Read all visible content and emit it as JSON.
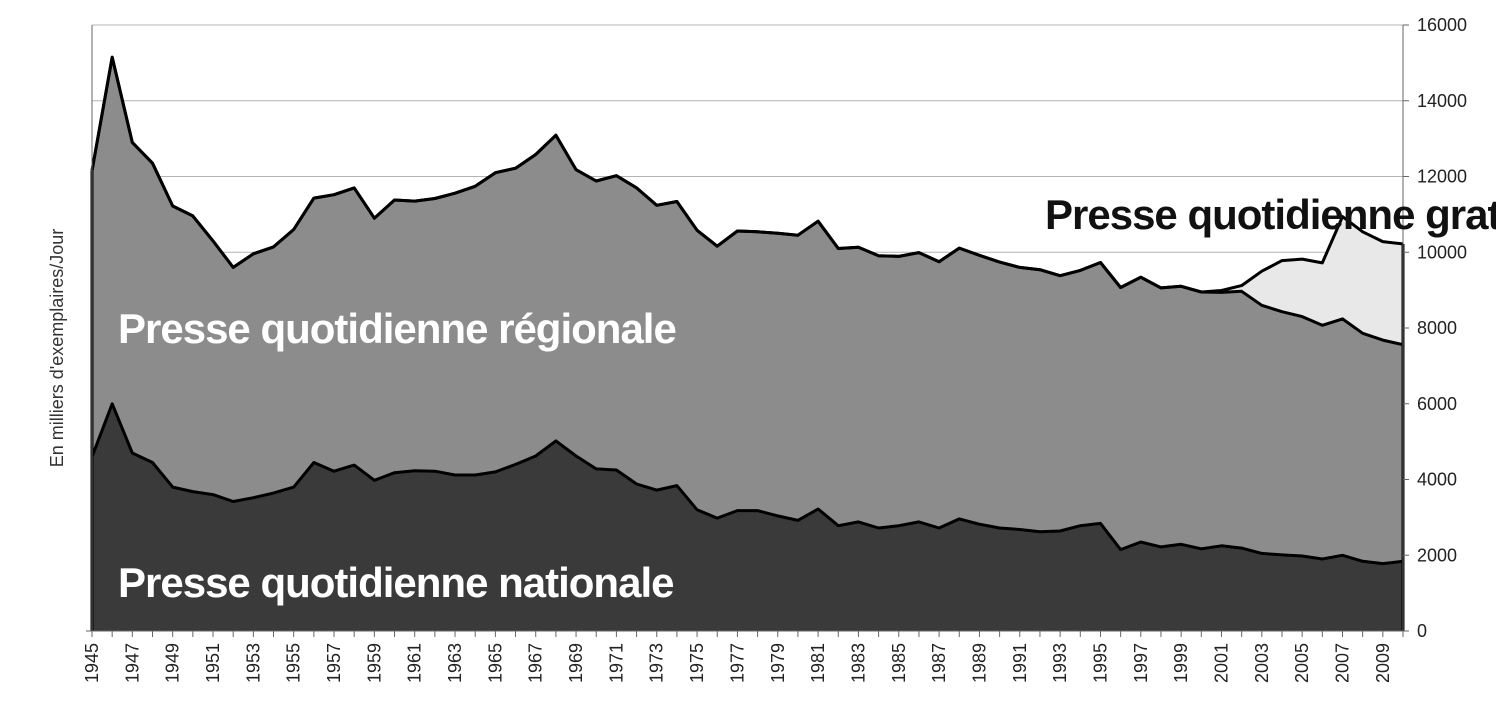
{
  "chart_data": {
    "type": "area",
    "stacked": true,
    "ylabel": "En milliers d'exemplaires/Jour",
    "ylim": [
      0,
      16000
    ],
    "yticks": [
      0,
      2000,
      4000,
      6000,
      8000,
      10000,
      12000,
      14000,
      16000
    ],
    "y_axis_side": "right",
    "grid": true,
    "x": [
      1945,
      1946,
      1947,
      1948,
      1949,
      1950,
      1951,
      1952,
      1953,
      1954,
      1955,
      1956,
      1957,
      1958,
      1959,
      1960,
      1961,
      1962,
      1963,
      1964,
      1965,
      1966,
      1967,
      1968,
      1969,
      1970,
      1971,
      1972,
      1973,
      1974,
      1975,
      1976,
      1977,
      1978,
      1979,
      1980,
      1981,
      1982,
      1983,
      1984,
      1985,
      1986,
      1987,
      1988,
      1989,
      1990,
      1991,
      1992,
      1993,
      1994,
      1995,
      1996,
      1997,
      1998,
      1999,
      2000,
      2001,
      2002,
      2003,
      2004,
      2005,
      2006,
      2007,
      2008,
      2009,
      2010
    ],
    "xtick_labels": [
      "1945",
      "1947",
      "1949",
      "1951",
      "1953",
      "1955",
      "1957",
      "1959",
      "1961",
      "1963",
      "1965",
      "1967",
      "1969",
      "1971",
      "1973",
      "1975",
      "1977",
      "1979",
      "1981",
      "1983",
      "1985",
      "1987",
      "1989",
      "1991",
      "1993",
      "1995",
      "1997",
      "1999",
      "2001",
      "2003",
      "2005",
      "2007",
      "2009"
    ],
    "series": [
      {
        "name": "Presse quotidienne nationale",
        "color": "#3a3a3a",
        "values": [
          4600,
          6000,
          4700,
          4450,
          3800,
          3680,
          3600,
          3420,
          3520,
          3640,
          3800,
          4450,
          4220,
          4380,
          3980,
          4180,
          4230,
          4220,
          4120,
          4120,
          4200,
          4400,
          4620,
          5020,
          4620,
          4280,
          4250,
          3880,
          3720,
          3840,
          3200,
          2980,
          3180,
          3180,
          3040,
          2920,
          3220,
          2780,
          2880,
          2720,
          2780,
          2880,
          2720,
          2960,
          2820,
          2720,
          2680,
          2620,
          2640,
          2780,
          2840,
          2150,
          2350,
          2220,
          2290,
          2170,
          2250,
          2190,
          2050,
          2010,
          1980,
          1900,
          2000,
          1840,
          1780,
          1840
        ]
      },
      {
        "name": "Presse quotidienne régionale",
        "color": "#8c8c8c",
        "values": [
          7550,
          9150,
          8200,
          7900,
          7420,
          7280,
          6700,
          6180,
          6440,
          6500,
          6800,
          6980,
          7300,
          7320,
          6920,
          7200,
          7120,
          7200,
          7440,
          7620,
          7900,
          7820,
          7960,
          8070,
          7560,
          7600,
          7770,
          7820,
          7520,
          7500,
          7380,
          7180,
          7380,
          7360,
          7460,
          7530,
          7600,
          7320,
          7250,
          7190,
          7110,
          7110,
          7030,
          7150,
          7100,
          7020,
          6920,
          6920,
          6740,
          6740,
          6890,
          6920,
          6990,
          6840,
          6810,
          6780,
          6690,
          6780,
          6550,
          6420,
          6320,
          6170,
          6240,
          6020,
          5900,
          5720
        ]
      },
      {
        "name": "Presse quotidienne gratuite",
        "color": "#e8e8e8",
        "values": [
          0,
          0,
          0,
          0,
          0,
          0,
          0,
          0,
          0,
          0,
          0,
          0,
          0,
          0,
          0,
          0,
          0,
          0,
          0,
          0,
          0,
          0,
          0,
          0,
          0,
          0,
          0,
          0,
          0,
          0,
          0,
          0,
          0,
          0,
          0,
          0,
          0,
          0,
          0,
          0,
          0,
          0,
          0,
          0,
          0,
          0,
          0,
          0,
          0,
          0,
          0,
          0,
          0,
          0,
          0,
          0,
          50,
          150,
          900,
          1350,
          1520,
          1650,
          2700,
          2680,
          2600,
          2660
        ]
      }
    ],
    "labels": {
      "nationale": "Presse quotidienne nationale",
      "regionale": "Presse quotidienne régionale",
      "gratuite": "Presse quotidienne gratuite"
    }
  }
}
